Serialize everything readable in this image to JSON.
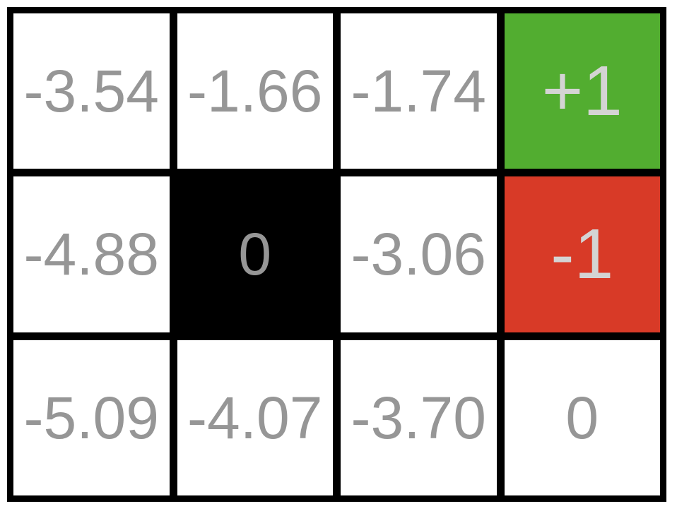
{
  "board": {
    "rows": 3,
    "cols": 4,
    "cells": [
      {
        "id": "r0c0",
        "type": "value",
        "label": "-3.54"
      },
      {
        "id": "r0c1",
        "type": "value",
        "label": "-1.66"
      },
      {
        "id": "r0c2",
        "type": "value",
        "label": "-1.74"
      },
      {
        "id": "r0c3",
        "type": "terminal_positive",
        "label": "+1"
      },
      {
        "id": "r1c0",
        "type": "value",
        "label": "-4.88"
      },
      {
        "id": "r1c1",
        "type": "wall",
        "label": "0"
      },
      {
        "id": "r1c2",
        "type": "value",
        "label": "-3.06"
      },
      {
        "id": "r1c3",
        "type": "terminal_negative",
        "label": "-1"
      },
      {
        "id": "r2c0",
        "type": "value",
        "label": "-5.09"
      },
      {
        "id": "r2c1",
        "type": "value",
        "label": "-4.07"
      },
      {
        "id": "r2c2",
        "type": "value",
        "label": "-3.70"
      },
      {
        "id": "r2c3",
        "type": "value",
        "label": "0"
      }
    ]
  },
  "colors": {
    "grid_background": "#000000",
    "cell_background": "#ffffff",
    "wall_background": "#000000",
    "positive_terminal": "#52ad30",
    "negative_terminal": "#d83a27",
    "value_text": "#969696",
    "terminal_text": "#d4d4d4"
  }
}
